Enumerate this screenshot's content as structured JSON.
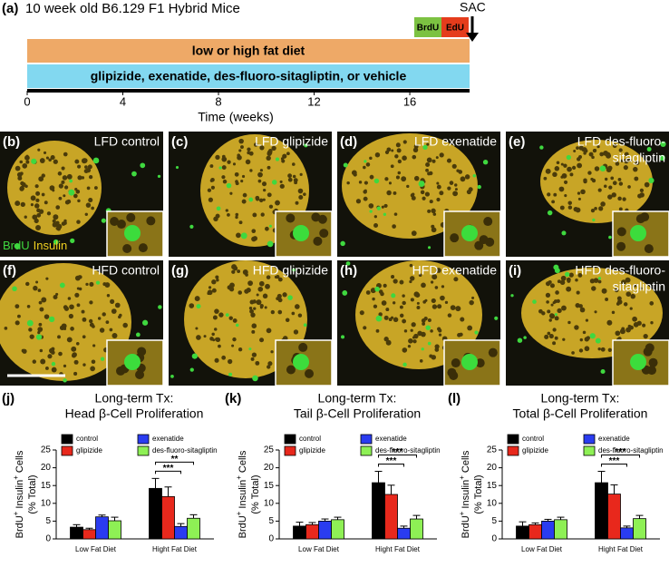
{
  "timeline": {
    "label": "(a)",
    "title": "10 week old B6.129 F1 Hybrid Mice",
    "sac": "SAC",
    "pulse_labels": [
      "BrdU",
      "EdU"
    ],
    "bars": [
      "low or high fat diet",
      "glipizide, exenatide, des-fluoro-sitagliptin, or vehicle"
    ],
    "xlim": [
      0,
      18.5
    ],
    "xticks": [
      0,
      4,
      8,
      12,
      16
    ],
    "xlabel": "Time (weeks)"
  },
  "panels": [
    {
      "label": "(b)",
      "title": [
        "LFD control"
      ]
    },
    {
      "label": "(c)",
      "title": [
        "LFD glipizide"
      ]
    },
    {
      "label": "(d)",
      "title": [
        "LFD exenatide"
      ]
    },
    {
      "label": "(e)",
      "title": [
        "LFD des-fluoro-",
        "sitagliptin"
      ]
    },
    {
      "label": "(f)",
      "title": [
        "HFD control"
      ]
    },
    {
      "label": "(g)",
      "title": [
        "HFD glipizide"
      ]
    },
    {
      "label": "(h)",
      "title": [
        "HFD exenatide"
      ]
    },
    {
      "label": "(i)",
      "title": [
        "HFD des-fluoro-",
        "sitagliptin"
      ]
    }
  ],
  "stain_labels": [
    "BrdU",
    "Insulin"
  ],
  "chart_data": [
    {
      "type": "bar",
      "label": "(j)",
      "title": [
        "Long-term Tx:",
        "Head β-Cell Proliferation"
      ],
      "ylabel": [
        "BrdU",
        "+",
        " Insulin",
        "+",
        " Cells"
      ],
      "ylabel2": "(% Total)",
      "categories": [
        "Low Fat Diet",
        "Hight Fat Diet"
      ],
      "ylim": [
        0,
        25
      ],
      "yticks": [
        0,
        5,
        10,
        15,
        20,
        25
      ],
      "series": [
        {
          "name": "control",
          "color": "#000000",
          "values": [
            3.3,
            14.2
          ],
          "errors": [
            0.7,
            2.8
          ]
        },
        {
          "name": "glipizide",
          "color": "#e8281c",
          "values": [
            2.6,
            11.9
          ],
          "errors": [
            0.4,
            2.7
          ]
        },
        {
          "name": "exenatide",
          "color": "#2a3cf0",
          "values": [
            6.2,
            3.5
          ],
          "errors": [
            0.5,
            0.8
          ]
        },
        {
          "name": "des-fluoro-sitagliptin",
          "color": "#8ef055",
          "values": [
            5.1,
            5.8
          ],
          "errors": [
            1.0,
            1.0
          ]
        }
      ],
      "significance": [
        "***",
        "**"
      ]
    },
    {
      "type": "bar",
      "label": "(k)",
      "title": [
        "Long-term Tx:",
        "Tail β-Cell Proliferation"
      ],
      "ylabel": [
        "BrdU",
        "+",
        " Insulin",
        "+",
        " Cells"
      ],
      "ylabel2": "(% Total)",
      "categories": [
        "Low Fat Diet",
        "Hight Fat Diet"
      ],
      "ylim": [
        0,
        25
      ],
      "yticks": [
        0,
        5,
        10,
        15,
        20,
        25
      ],
      "series": [
        {
          "name": "control",
          "color": "#000000",
          "values": [
            3.6,
            15.8
          ],
          "errors": [
            1.1,
            3.2
          ]
        },
        {
          "name": "glipizide",
          "color": "#e8281c",
          "values": [
            4.0,
            12.5
          ],
          "errors": [
            0.6,
            2.6
          ]
        },
        {
          "name": "exenatide",
          "color": "#2a3cf0",
          "values": [
            5.0,
            3.0
          ],
          "errors": [
            0.6,
            0.6
          ]
        },
        {
          "name": "des-fluoro-sitagliptin",
          "color": "#8ef055",
          "values": [
            5.4,
            5.6
          ],
          "errors": [
            0.7,
            1.0
          ]
        }
      ],
      "significance": [
        "***",
        "***"
      ]
    },
    {
      "type": "bar",
      "label": "(l)",
      "title": [
        "Long-term Tx:",
        "Total β-Cell Proliferation"
      ],
      "ylabel": [
        "BrdU",
        "+",
        " Insulin",
        "+",
        " Cells"
      ],
      "ylabel2": "(% Total)",
      "categories": [
        "Low Fat Diet",
        "Hight Fat Diet"
      ],
      "ylim": [
        0,
        25
      ],
      "yticks": [
        0,
        5,
        10,
        15,
        20,
        25
      ],
      "series": [
        {
          "name": "control",
          "color": "#000000",
          "values": [
            3.6,
            15.8
          ],
          "errors": [
            1.2,
            3.2
          ]
        },
        {
          "name": "glipizide",
          "color": "#e8281c",
          "values": [
            4.0,
            12.6
          ],
          "errors": [
            0.5,
            2.6
          ]
        },
        {
          "name": "exenatide",
          "color": "#2a3cf0",
          "values": [
            5.0,
            3.1
          ],
          "errors": [
            0.5,
            0.5
          ]
        },
        {
          "name": "des-fluoro-sitagliptin",
          "color": "#8ef055",
          "values": [
            5.4,
            5.7
          ],
          "errors": [
            0.7,
            0.9
          ]
        }
      ],
      "significance": [
        "***",
        "***"
      ]
    }
  ]
}
